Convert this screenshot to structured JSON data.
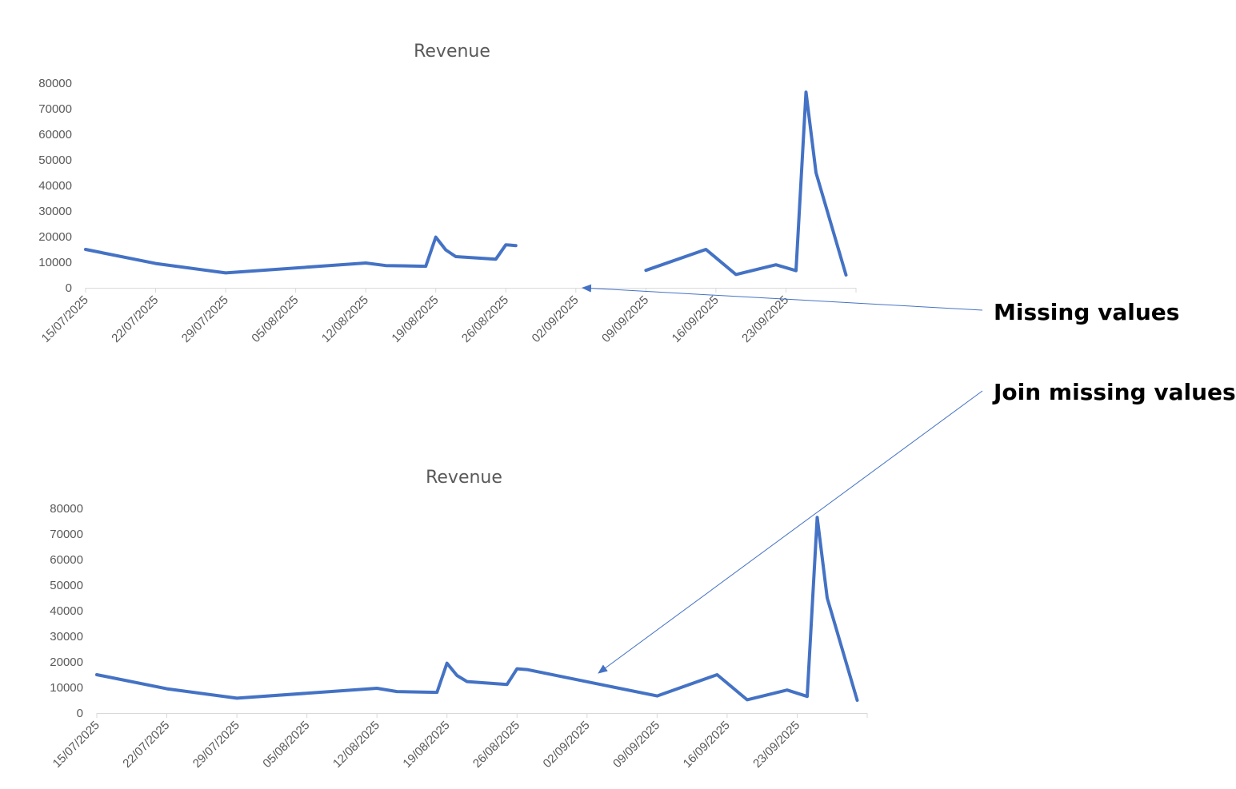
{
  "colors": {
    "series": "#4472c4",
    "axis": "#d9d9d9",
    "text": "#595959",
    "arrow": "#4472c4"
  },
  "annotations": [
    {
      "text": "Missing values"
    },
    {
      "text": "Join missing values"
    }
  ],
  "chart_data": [
    {
      "type": "line",
      "title": "Revenue",
      "xlabel": "",
      "ylabel": "",
      "ylim": [
        0,
        80000
      ],
      "yticks": [
        "0",
        "10000",
        "20000",
        "30000",
        "40000",
        "50000",
        "60000",
        "70000",
        "80000"
      ],
      "xlim": [
        "2025-07-15",
        "2025-09-30"
      ],
      "xticks": [
        "15/07/2025",
        "22/07/2025",
        "29/07/2025",
        "05/08/2025",
        "12/08/2025",
        "19/08/2025",
        "26/08/2025",
        "02/09/2025",
        "09/09/2025",
        "16/09/2025",
        "23/09/2025"
      ],
      "missing_values": "gap",
      "grid": false,
      "legend": "none",
      "series": [
        {
          "points": [
            [
              "2025-07-15",
              15000
            ],
            [
              "2025-07-22",
              9500
            ],
            [
              "2025-07-29",
              5800
            ],
            [
              "2025-08-12",
              9700
            ],
            [
              "2025-08-14",
              8700
            ],
            [
              "2025-08-18",
              8400
            ],
            [
              "2025-08-19",
              19800
            ],
            [
              "2025-08-20",
              14800
            ],
            [
              "2025-08-21",
              12200
            ],
            [
              "2025-08-25",
              11200
            ],
            [
              "2025-08-26",
              16800
            ],
            [
              "2025-08-27",
              16500
            ],
            [
              "2025-09-09",
              6800
            ],
            [
              "2025-09-15",
              15000
            ],
            [
              "2025-09-18",
              5200
            ],
            [
              "2025-09-22",
              9000
            ],
            [
              "2025-09-24",
              6700
            ],
            [
              "2025-09-25",
              76500
            ],
            [
              "2025-09-26",
              45000
            ],
            [
              "2025-09-29",
              5000
            ]
          ],
          "gap_between": [
            "2025-08-27",
            "2025-09-09"
          ]
        }
      ]
    },
    {
      "type": "line",
      "title": "Revenue",
      "xlabel": "",
      "ylabel": "",
      "ylim": [
        0,
        80000
      ],
      "yticks": [
        "0",
        "10000",
        "20000",
        "30000",
        "40000",
        "50000",
        "60000",
        "70000",
        "80000"
      ],
      "xlim": [
        "2025-07-15",
        "2025-09-30"
      ],
      "xticks": [
        "15/07/2025",
        "22/07/2025",
        "29/07/2025",
        "05/08/2025",
        "12/08/2025",
        "19/08/2025",
        "26/08/2025",
        "02/09/2025",
        "09/09/2025",
        "16/09/2025",
        "23/09/2025"
      ],
      "missing_values": "connected",
      "grid": false,
      "legend": "none",
      "series": [
        {
          "points": [
            [
              "2025-07-15",
              15000
            ],
            [
              "2025-07-22",
              9500
            ],
            [
              "2025-07-29",
              5800
            ],
            [
              "2025-08-12",
              9700
            ],
            [
              "2025-08-14",
              8400
            ],
            [
              "2025-08-18",
              8100
            ],
            [
              "2025-08-19",
              19500
            ],
            [
              "2025-08-20",
              14700
            ],
            [
              "2025-08-21",
              12300
            ],
            [
              "2025-08-25",
              11200
            ],
            [
              "2025-08-26",
              17300
            ],
            [
              "2025-08-27",
              17000
            ],
            [
              "2025-09-09",
              6700
            ],
            [
              "2025-09-15",
              15000
            ],
            [
              "2025-09-18",
              5200
            ],
            [
              "2025-09-22",
              9000
            ],
            [
              "2025-09-24",
              6500
            ],
            [
              "2025-09-25",
              76500
            ],
            [
              "2025-09-26",
              45000
            ],
            [
              "2025-09-29",
              5000
            ]
          ]
        }
      ]
    }
  ]
}
